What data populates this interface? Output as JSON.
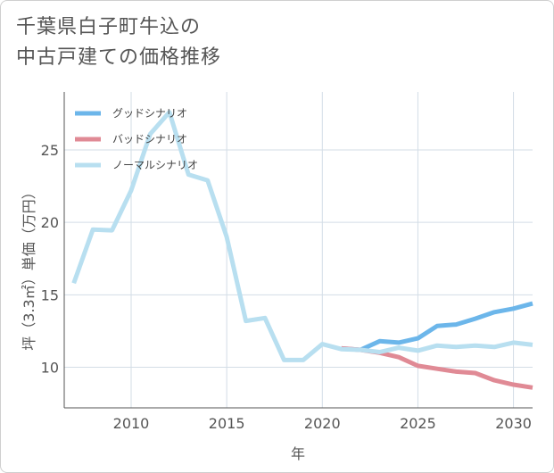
{
  "title_lines": [
    "千葉県白子町牛込の",
    "中古戸建ての価格推移"
  ],
  "chart_data": {
    "type": "line",
    "title": "千葉県白子町牛込の中古戸建ての価格推移",
    "xlabel": "年",
    "ylabel": "坪（3.3㎡）単価（万円）",
    "xlim": [
      2006.5,
      2031
    ],
    "ylim": [
      7.2,
      29
    ],
    "x_ticks": [
      2010,
      2015,
      2020,
      2025,
      2030
    ],
    "y_ticks": [
      10,
      15,
      20,
      25
    ],
    "grid": true,
    "legend_position": "top-left",
    "series": [
      {
        "name": "グッドシナリオ",
        "color": "#6cb6ea",
        "x": [
          2021,
          2022,
          2023,
          2024,
          2025,
          2026,
          2027,
          2028,
          2029,
          2030,
          2031
        ],
        "y": [
          11.3,
          11.2,
          11.8,
          11.7,
          12.0,
          12.85,
          12.95,
          13.35,
          13.8,
          14.05,
          14.4
        ]
      },
      {
        "name": "バッドシナリオ",
        "color": "#e08a95",
        "x": [
          2021,
          2022,
          2023,
          2024,
          2025,
          2026,
          2027,
          2028,
          2029,
          2030,
          2031
        ],
        "y": [
          11.3,
          11.2,
          11.0,
          10.7,
          10.1,
          9.9,
          9.7,
          9.6,
          9.1,
          8.8,
          8.6
        ]
      },
      {
        "name": "ノーマルシナリオ",
        "color": "#b8dff0",
        "x": [
          2007,
          2008,
          2009,
          2010,
          2011,
          2012,
          2013,
          2014,
          2015,
          2016,
          2017,
          2018,
          2019,
          2020,
          2021,
          2022,
          2023,
          2024,
          2025,
          2026,
          2027,
          2028,
          2029,
          2030,
          2031
        ],
        "y": [
          15.8,
          19.5,
          19.45,
          22.2,
          26.1,
          27.6,
          23.3,
          22.9,
          19.0,
          13.2,
          13.4,
          10.5,
          10.5,
          11.6,
          11.25,
          11.2,
          11.05,
          11.35,
          11.15,
          11.5,
          11.4,
          11.5,
          11.4,
          11.7,
          11.55
        ]
      }
    ]
  }
}
